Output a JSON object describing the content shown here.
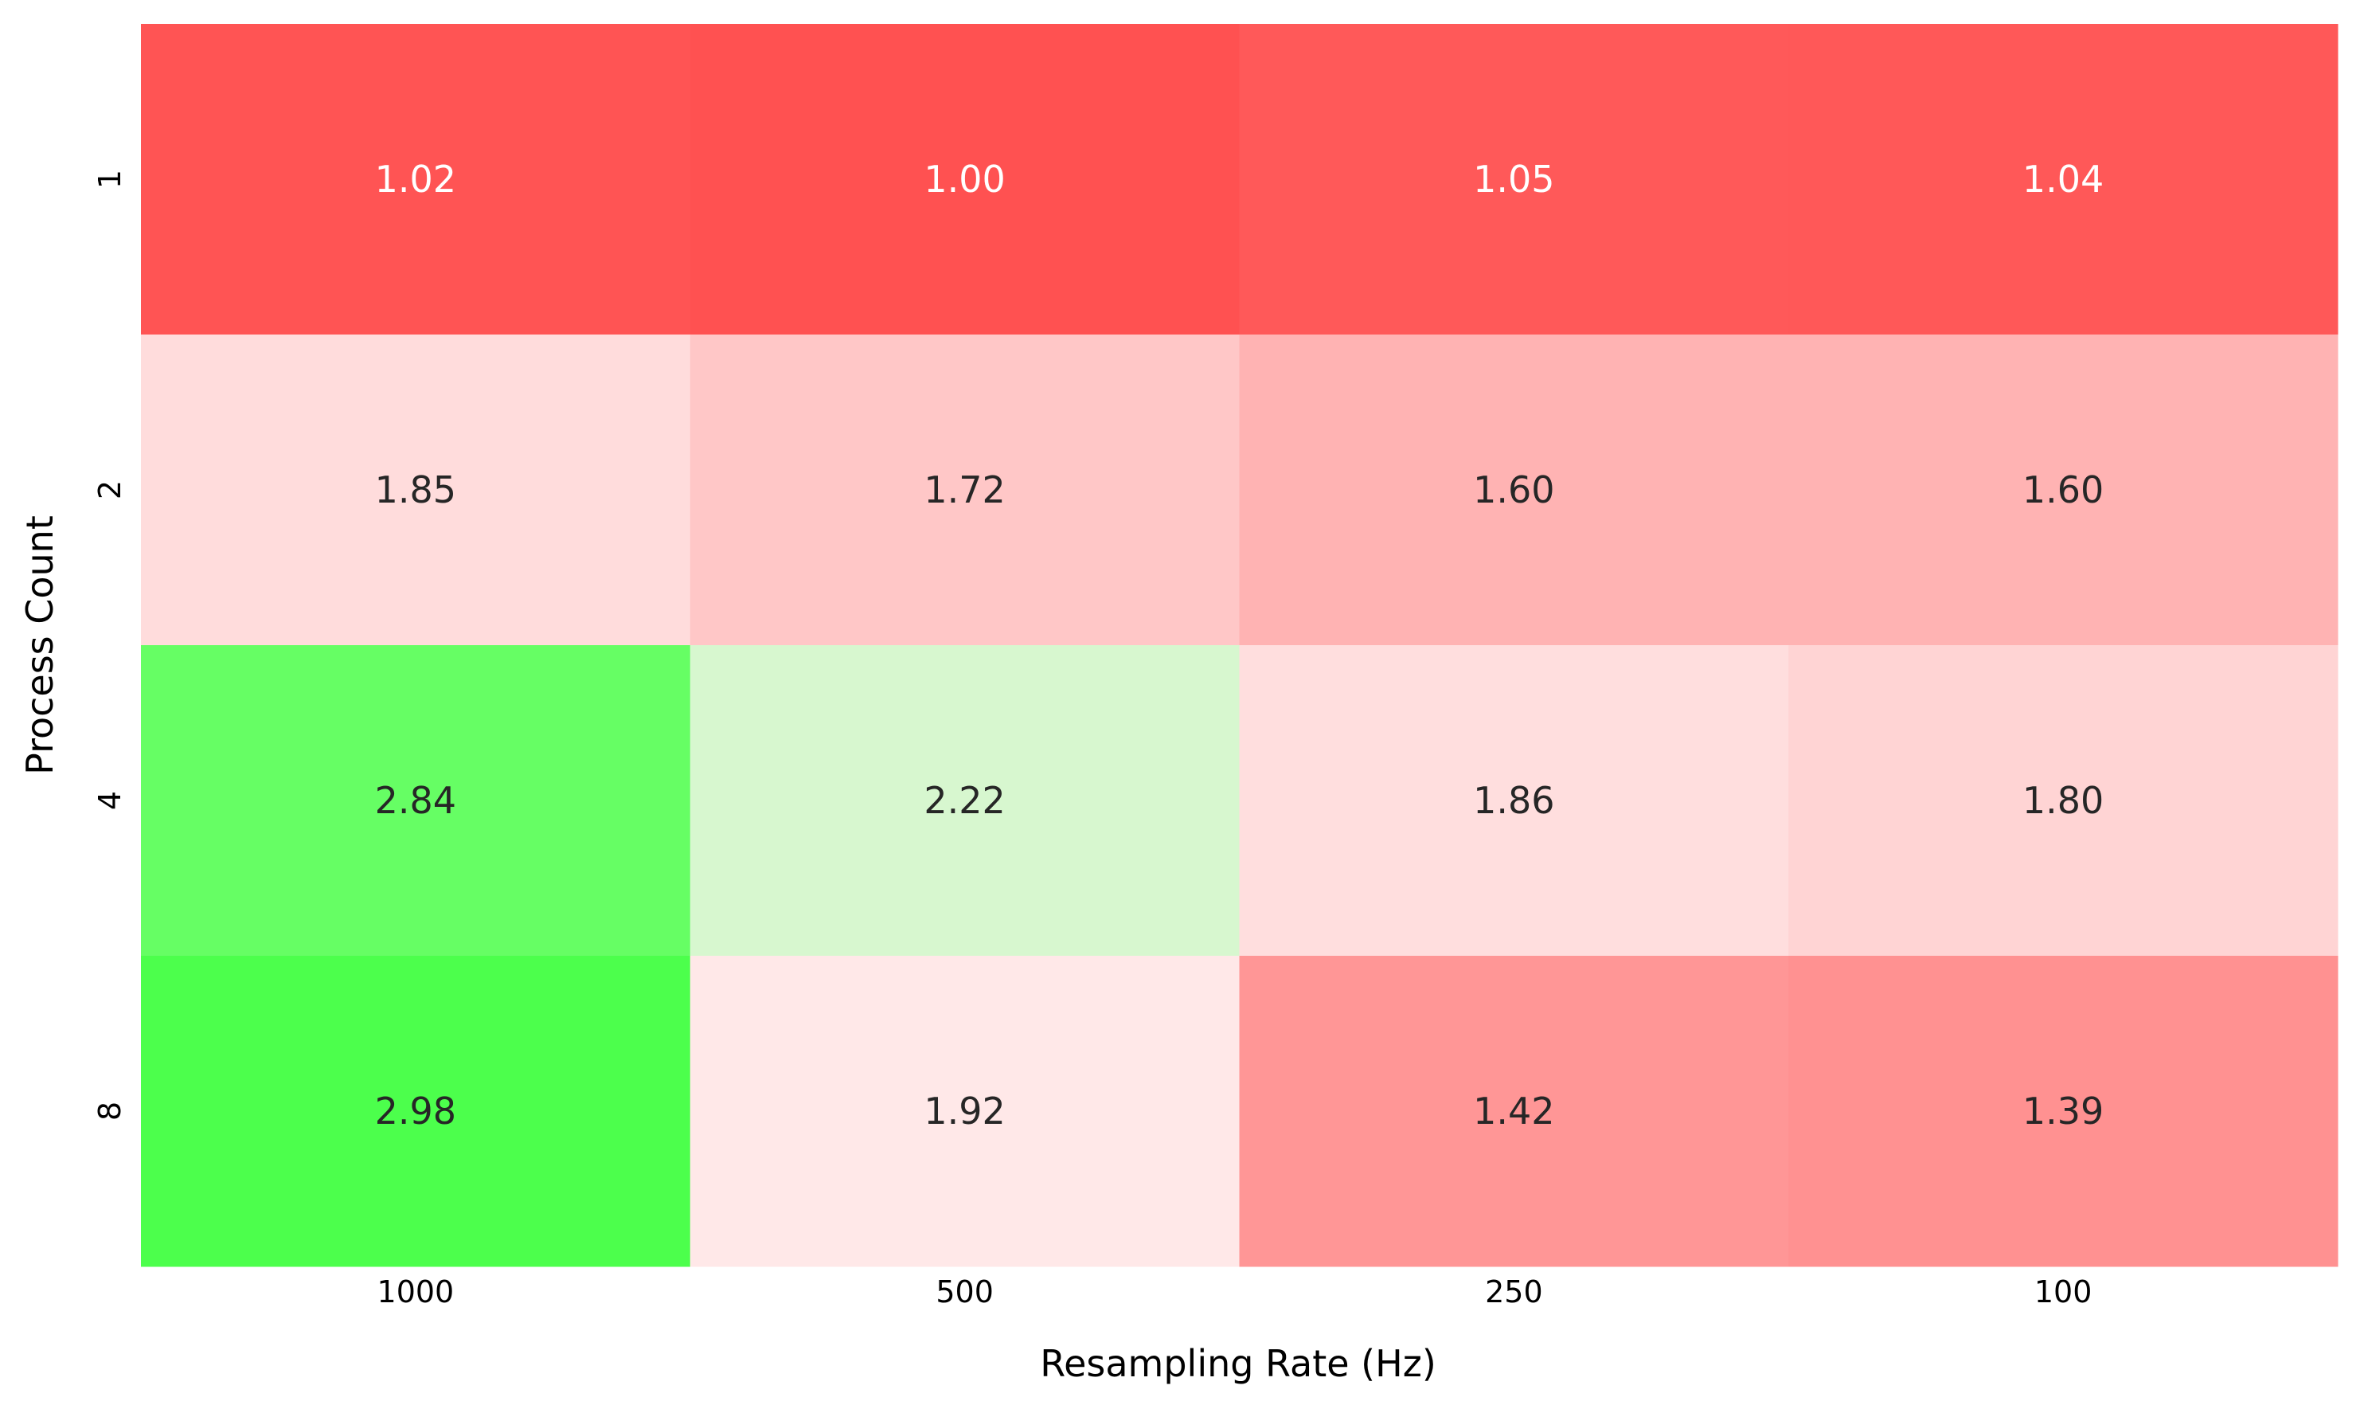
{
  "chart_data": {
    "type": "heatmap",
    "title": "",
    "xlabel": "Resampling Rate (Hz)",
    "ylabel": "Process Count",
    "x_categories": [
      "1000",
      "500",
      "250",
      "100"
    ],
    "y_categories": [
      "1",
      "2",
      "4",
      "8"
    ],
    "values": [
      [
        1.02,
        1.0,
        1.05,
        1.04
      ],
      [
        1.85,
        1.72,
        1.6,
        1.6
      ],
      [
        2.84,
        2.22,
        1.86,
        1.8
      ],
      [
        2.98,
        1.92,
        1.42,
        1.39
      ]
    ],
    "value_format": "2-decimal",
    "colormap": {
      "low": "#ff5151",
      "mid": "#fff5f5",
      "high": "#4cff4c",
      "center_value": 2.0
    },
    "annotation_colors": {
      "on_dark": "#ffffff",
      "on_light": "#262626"
    },
    "colorbar": false,
    "grid": false
  }
}
